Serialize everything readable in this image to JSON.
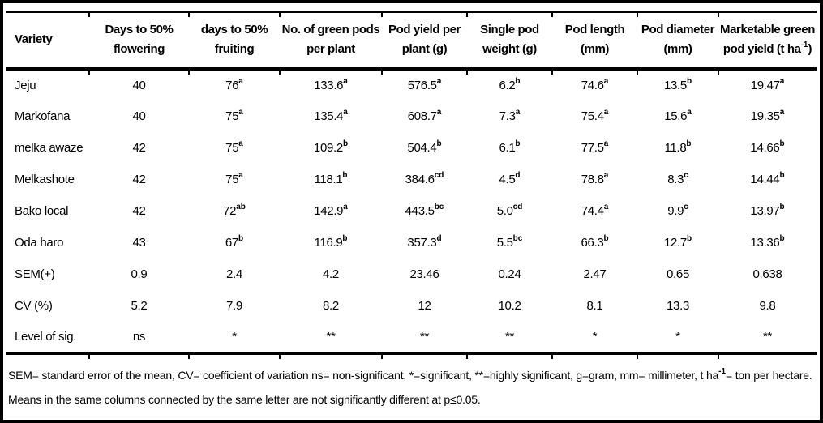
{
  "colors": {
    "text": "#000000",
    "background": "#ffffff",
    "border": "#000000"
  },
  "table": {
    "columns": [
      {
        "label": "Variety"
      },
      {
        "label": "Days to 50%\nflowering"
      },
      {
        "label": "days to 50%\nfruiting"
      },
      {
        "label": "No. of green pods\nper plant"
      },
      {
        "label": "Pod yield per\nplant (g)"
      },
      {
        "label": "Single pod\nweight (g)"
      },
      {
        "label": "Pod length\n(mm)"
      },
      {
        "label": "Pod diameter\n(mm)"
      },
      {
        "label": "Marketable green\npod yield (t ha^{-1})"
      }
    ],
    "rows": [
      [
        "Jeju",
        "40",
        "76^{a}",
        "133.6^{a}",
        "576.5^{a}",
        "6.2^{b}",
        "74.6^{a}",
        "13.5^{b}",
        "19.47^{a}"
      ],
      [
        "Markofana",
        "40",
        "75^{a}",
        "135.4^{a}",
        "608.7^{a}",
        "7.3^{a}",
        "75.4^{a}",
        "15.6^{a}",
        "19.35^{a}"
      ],
      [
        "melka awaze",
        "42",
        "75^{a}",
        "109.2^{b}",
        "504.4^{b}",
        "6.1^{b}",
        "77.5^{a}",
        "11.8^{b}",
        "14.66^{b}"
      ],
      [
        "Melkashote",
        "42",
        "75^{a}",
        "118.1^{b}",
        "384.6^{cd}",
        "4.5^{d}",
        "78.8^{a}",
        "8.3^{c}",
        "14.44^{b}"
      ],
      [
        "Bako local",
        "42",
        "72^{ab}",
        "142.9^{a}",
        "443.5^{bc}",
        "5.0^{cd}",
        "74.4^{a}",
        "9.9^{c}",
        "13.97^{b}"
      ],
      [
        "Oda haro",
        "43",
        "67^{b}",
        "116.9^{b}",
        "357.3^{d}",
        "5.5^{bc}",
        "66.3^{b}",
        "12.7^{b}",
        "13.36^{b}"
      ],
      [
        "SEM(+)",
        "0.9",
        "2.4",
        "4.2",
        "23.46",
        "0.24",
        "2.47",
        "0.65",
        "0.638"
      ],
      [
        "CV (%)",
        "5.2",
        "7.9",
        "8.2",
        "12",
        "10.2",
        "8.1",
        "13.3",
        "9.8"
      ],
      [
        "Level of sig.",
        "ns",
        "*",
        "**",
        "**",
        "**",
        "*",
        "*",
        "**"
      ]
    ]
  },
  "footnote": "SEM= standard error of the mean, CV= coefficient of variation ns= non-significant, *=significant, **=highly significant, g=gram, mm= millimeter, t ha^{-1}= ton per hectare. Means in the same columns connected by the same letter are not significantly different at p≤0.05."
}
